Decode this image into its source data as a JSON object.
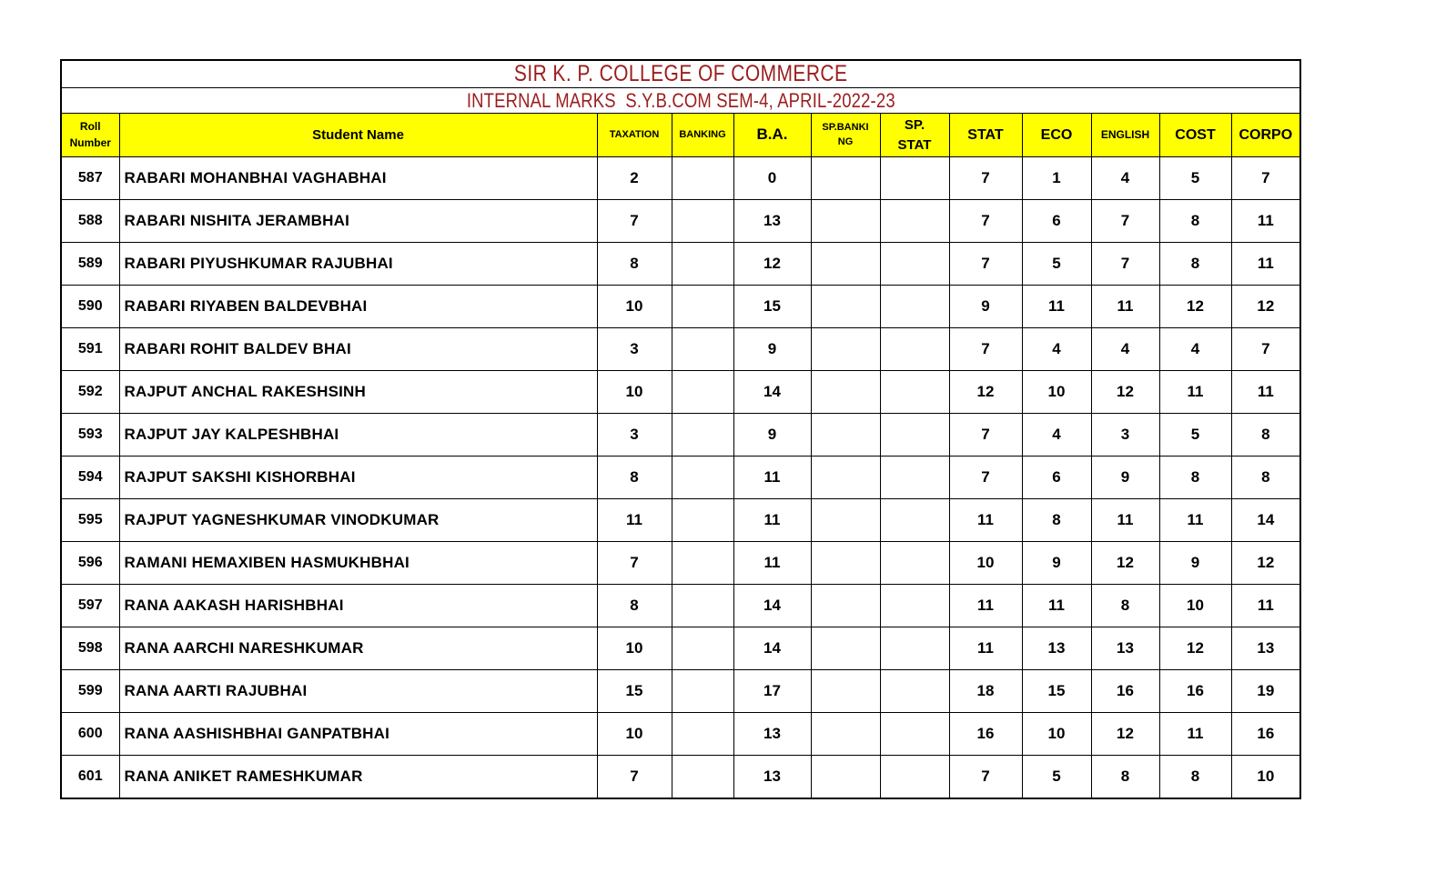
{
  "title": "SIR K. P. COLLEGE OF COMMERCE",
  "subtitle": "INTERNAL MARKS  S.Y.B.COM SEM-4, APRIL-2022-23",
  "colors": {
    "title_text": "#9c1d1d",
    "header_background": "#ffff00",
    "border": "#000000"
  },
  "columns": [
    {
      "key": "roll",
      "label": "Roll Number"
    },
    {
      "key": "name",
      "label": "Student Name"
    },
    {
      "key": "taxation",
      "label": "TAXATION"
    },
    {
      "key": "banking",
      "label": "BANKING"
    },
    {
      "key": "ba",
      "label": "B.A."
    },
    {
      "key": "sp_banking",
      "label": "SP.BANKI NG"
    },
    {
      "key": "sp_stat",
      "label": "SP. STAT"
    },
    {
      "key": "stat",
      "label": "STAT"
    },
    {
      "key": "eco",
      "label": "ECO"
    },
    {
      "key": "english",
      "label": "ENGLISH"
    },
    {
      "key": "cost",
      "label": "COST"
    },
    {
      "key": "corpo",
      "label": "CORPO"
    }
  ],
  "rows": [
    {
      "roll": "587",
      "name": "RABARI MOHANBHAI VAGHABHAI",
      "taxation": "2",
      "banking": "",
      "ba": "0",
      "sp_banking": "",
      "sp_stat": "",
      "stat": "7",
      "eco": "1",
      "english": "4",
      "cost": "5",
      "corpo": "7"
    },
    {
      "roll": "588",
      "name": "RABARI NISHITA JERAMBHAI",
      "taxation": "7",
      "banking": "",
      "ba": "13",
      "sp_banking": "",
      "sp_stat": "",
      "stat": "7",
      "eco": "6",
      "english": "7",
      "cost": "8",
      "corpo": "11"
    },
    {
      "roll": "589",
      "name": "RABARI PIYUSHKUMAR RAJUBHAI",
      "taxation": "8",
      "banking": "",
      "ba": "12",
      "sp_banking": "",
      "sp_stat": "",
      "stat": "7",
      "eco": "5",
      "english": "7",
      "cost": "8",
      "corpo": "11"
    },
    {
      "roll": "590",
      "name": "RABARI RIYABEN BALDEVBHAI",
      "taxation": "10",
      "banking": "",
      "ba": "15",
      "sp_banking": "",
      "sp_stat": "",
      "stat": "9",
      "eco": "11",
      "english": "11",
      "cost": "12",
      "corpo": "12"
    },
    {
      "roll": "591",
      "name": "RABARI ROHIT BALDEV BHAI",
      "taxation": "3",
      "banking": "",
      "ba": "9",
      "sp_banking": "",
      "sp_stat": "",
      "stat": "7",
      "eco": "4",
      "english": "4",
      "cost": "4",
      "corpo": "7"
    },
    {
      "roll": "592",
      "name": "RAJPUT ANCHAL RAKESHSINH",
      "taxation": "10",
      "banking": "",
      "ba": "14",
      "sp_banking": "",
      "sp_stat": "",
      "stat": "12",
      "eco": "10",
      "english": "12",
      "cost": "11",
      "corpo": "11"
    },
    {
      "roll": "593",
      "name": "RAJPUT JAY KALPESHBHAI",
      "taxation": "3",
      "banking": "",
      "ba": "9",
      "sp_banking": "",
      "sp_stat": "",
      "stat": "7",
      "eco": "4",
      "english": "3",
      "cost": "5",
      "corpo": "8"
    },
    {
      "roll": "594",
      "name": "RAJPUT SAKSHI KISHORBHAI",
      "taxation": "8",
      "banking": "",
      "ba": "11",
      "sp_banking": "",
      "sp_stat": "",
      "stat": "7",
      "eco": "6",
      "english": "9",
      "cost": "8",
      "corpo": "8"
    },
    {
      "roll": "595",
      "name": "RAJPUT YAGNESHKUMAR VINODKUMAR",
      "taxation": "11",
      "banking": "",
      "ba": "11",
      "sp_banking": "",
      "sp_stat": "",
      "stat": "11",
      "eco": "8",
      "english": "11",
      "cost": "11",
      "corpo": "14"
    },
    {
      "roll": "596",
      "name": "RAMANI HEMAXIBEN HASMUKHBHAI",
      "taxation": "7",
      "banking": "",
      "ba": "11",
      "sp_banking": "",
      "sp_stat": "",
      "stat": "10",
      "eco": "9",
      "english": "12",
      "cost": "9",
      "corpo": "12"
    },
    {
      "roll": "597",
      "name": "RANA AAKASH HARISHBHAI",
      "taxation": "8",
      "banking": "",
      "ba": "14",
      "sp_banking": "",
      "sp_stat": "",
      "stat": "11",
      "eco": "11",
      "english": "8",
      "cost": "10",
      "corpo": "11"
    },
    {
      "roll": "598",
      "name": "RANA AARCHI NARESHKUMAR",
      "taxation": "10",
      "banking": "",
      "ba": "14",
      "sp_banking": "",
      "sp_stat": "",
      "stat": "11",
      "eco": "13",
      "english": "13",
      "cost": "12",
      "corpo": "13"
    },
    {
      "roll": "599",
      "name": "RANA AARTI RAJUBHAI",
      "taxation": "15",
      "banking": "",
      "ba": "17",
      "sp_banking": "",
      "sp_stat": "",
      "stat": "18",
      "eco": "15",
      "english": "16",
      "cost": "16",
      "corpo": "19"
    },
    {
      "roll": "600",
      "name": "RANA AASHISHBHAI GANPATBHAI",
      "taxation": "10",
      "banking": "",
      "ba": "13",
      "sp_banking": "",
      "sp_stat": "",
      "stat": "16",
      "eco": "10",
      "english": "12",
      "cost": "11",
      "corpo": "16"
    },
    {
      "roll": "601",
      "name": "RANA ANIKET RAMESHKUMAR",
      "taxation": "7",
      "banking": "",
      "ba": "13",
      "sp_banking": "",
      "sp_stat": "",
      "stat": "7",
      "eco": "5",
      "english": "8",
      "cost": "8",
      "corpo": "10"
    }
  ]
}
